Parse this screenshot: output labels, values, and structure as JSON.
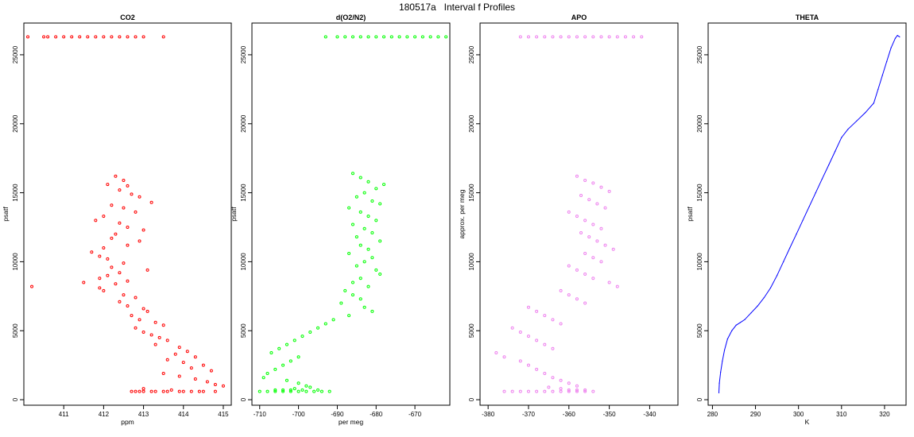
{
  "suptitle": "180517a   Interval f Profiles",
  "chart_data": [
    {
      "type": "scatter",
      "title": "CO2",
      "xlabel": "ppm",
      "ylabel": "psatf",
      "xlim": [
        410.0,
        415.2
      ],
      "ylim": [
        -400,
        27300
      ],
      "xticks": [
        411,
        412,
        413,
        414,
        415
      ],
      "yticks": [
        0,
        5000,
        10000,
        15000,
        20000,
        25000
      ],
      "color": "#ff0000",
      "grid": false,
      "x": [
        410.1,
        410.5,
        410.6,
        410.8,
        411.0,
        411.2,
        411.4,
        411.6,
        411.8,
        412.0,
        412.2,
        412.4,
        412.6,
        412.8,
        413.0,
        413.5,
        412.3,
        412.5,
        412.1,
        412.6,
        412.4,
        412.7,
        412.9,
        413.2,
        412.2,
        412.5,
        412.8,
        412.0,
        411.8,
        412.4,
        412.6,
        413.0,
        412.3,
        412.2,
        412.9,
        412.6,
        412.0,
        411.7,
        411.9,
        412.1,
        412.5,
        412.2,
        413.1,
        412.4,
        412.1,
        411.9,
        412.6,
        412.3,
        411.9,
        411.5,
        410.2,
        412.0,
        412.5,
        412.8,
        412.4,
        412.6,
        413.0,
        413.1,
        412.7,
        412.9,
        413.3,
        413.5,
        412.8,
        413.0,
        413.2,
        413.4,
        413.6,
        413.3,
        413.9,
        414.1,
        413.8,
        414.3,
        413.6,
        414.0,
        414.5,
        414.2,
        414.7,
        413.5,
        413.9,
        414.3,
        414.6,
        414.8,
        415.0,
        413.0,
        413.7,
        412.8,
        412.7,
        413.0,
        413.3,
        413.6,
        413.9,
        414.2,
        414.5,
        414.8,
        413.5,
        413.2,
        412.9,
        414.0,
        414.4
      ],
      "y": [
        26300,
        26300,
        26300,
        26300,
        26300,
        26300,
        26300,
        26300,
        26300,
        26300,
        26300,
        26300,
        26300,
        26300,
        26300,
        26300,
        16200,
        15900,
        15600,
        15500,
        15200,
        14900,
        14700,
        14300,
        14100,
        13900,
        13600,
        13300,
        13000,
        12800,
        12500,
        12300,
        12000,
        11700,
        11500,
        11200,
        11000,
        10700,
        10400,
        10200,
        9900,
        9600,
        9400,
        9200,
        9000,
        8800,
        8600,
        8400,
        8100,
        8500,
        8200,
        7900,
        7600,
        7400,
        7100,
        6800,
        6600,
        6400,
        6100,
        5800,
        5600,
        5400,
        5200,
        4900,
        4700,
        4500,
        4300,
        4000,
        3800,
        3500,
        3300,
        3100,
        2900,
        2700,
        2500,
        2300,
        2100,
        1900,
        1700,
        1500,
        1300,
        1100,
        1000,
        800,
        700,
        600,
        600,
        600,
        600,
        600,
        600,
        600,
        600,
        600,
        600,
        600,
        600,
        600,
        600
      ]
    },
    {
      "type": "scatter",
      "title": "d(O2/N2)",
      "xlabel": "per meg",
      "ylabel": "psatf",
      "xlim": [
        -712,
        -661
      ],
      "ylim": [
        -400,
        27300
      ],
      "xticks": [
        -710,
        -700,
        -690,
        -680,
        -670
      ],
      "yticks": [
        0,
        5000,
        10000,
        15000,
        20000,
        25000
      ],
      "color": "#00ff00",
      "grid": false,
      "x": [
        -693,
        -690,
        -688,
        -686,
        -684,
        -682,
        -680,
        -678,
        -676,
        -674,
        -672,
        -670,
        -668,
        -666,
        -664,
        -662,
        -686,
        -684,
        -682,
        -678,
        -680,
        -683,
        -685,
        -681,
        -679,
        -687,
        -684,
        -682,
        -680,
        -686,
        -683,
        -681,
        -685,
        -679,
        -684,
        -682,
        -687,
        -681,
        -683,
        -685,
        -680,
        -679,
        -684,
        -686,
        -682,
        -688,
        -686,
        -684,
        -689,
        -683,
        -681,
        -687,
        -691,
        -693,
        -695,
        -697,
        -699,
        -701,
        -703,
        -705,
        -707,
        -700,
        -702,
        -704,
        -706,
        -708,
        -709,
        -703,
        -700,
        -698,
        -697,
        -701,
        -704,
        -706,
        -702,
        -699,
        -695,
        -710,
        -708,
        -706,
        -704,
        -702,
        -700,
        -698,
        -696,
        -694,
        -692
      ],
      "y": [
        26300,
        26300,
        26300,
        26300,
        26300,
        26300,
        26300,
        26300,
        26300,
        26300,
        26300,
        26300,
        26300,
        26300,
        26300,
        26300,
        16400,
        16100,
        15800,
        15600,
        15300,
        15000,
        14700,
        14400,
        14200,
        13900,
        13600,
        13300,
        13000,
        12700,
        12400,
        12100,
        11800,
        11500,
        11200,
        10900,
        10600,
        10300,
        10000,
        9700,
        9400,
        9100,
        8800,
        8500,
        8200,
        7900,
        7600,
        7300,
        7000,
        6700,
        6400,
        6100,
        5800,
        5500,
        5200,
        4900,
        4600,
        4300,
        4000,
        3700,
        3400,
        3100,
        2800,
        2500,
        2200,
        1900,
        1600,
        1400,
        1200,
        1000,
        900,
        800,
        700,
        700,
        700,
        700,
        700,
        600,
        600,
        600,
        600,
        600,
        600,
        600,
        600,
        600,
        600
      ]
    },
    {
      "type": "scatter",
      "title": "APO",
      "xlabel": "",
      "ylabel": "approx. per meg",
      "xlim": [
        -382,
        -333
      ],
      "ylim": [
        -400,
        27300
      ],
      "xticks": [
        -380,
        -370,
        -360,
        -350,
        -340
      ],
      "yticks": [
        0,
        5000,
        10000,
        15000,
        20000,
        25000
      ],
      "color": "#ee82ee",
      "grid": false,
      "x": [
        -372,
        -370,
        -368,
        -366,
        -364,
        -362,
        -360,
        -358,
        -356,
        -354,
        -352,
        -350,
        -348,
        -346,
        -344,
        -342,
        -358,
        -356,
        -354,
        -352,
        -350,
        -357,
        -355,
        -353,
        -351,
        -360,
        -358,
        -356,
        -354,
        -352,
        -357,
        -355,
        -353,
        -351,
        -349,
        -356,
        -354,
        -352,
        -360,
        -358,
        -356,
        -354,
        -350,
        -348,
        -362,
        -360,
        -358,
        -356,
        -370,
        -368,
        -366,
        -364,
        -362,
        -374,
        -372,
        -370,
        -368,
        -366,
        -364,
        -378,
        -376,
        -372,
        -370,
        -368,
        -366,
        -364,
        -362,
        -360,
        -358,
        -365,
        -362,
        -360,
        -358,
        -356,
        -376,
        -374,
        -372,
        -370,
        -368,
        -366,
        -364,
        -362,
        -360,
        -358,
        -356,
        -354
      ],
      "y": [
        26300,
        26300,
        26300,
        26300,
        26300,
        26300,
        26300,
        26300,
        26300,
        26300,
        26300,
        26300,
        26300,
        26300,
        26300,
        26300,
        16200,
        15900,
        15700,
        15400,
        15100,
        14800,
        14500,
        14200,
        13900,
        13600,
        13300,
        13000,
        12700,
        12400,
        12100,
        11800,
        11500,
        11200,
        10900,
        10600,
        10300,
        10000,
        9700,
        9400,
        9100,
        8800,
        8500,
        8200,
        7900,
        7600,
        7300,
        7000,
        6700,
        6400,
        6100,
        5800,
        5500,
        5200,
        4900,
        4600,
        4300,
        4000,
        3700,
        3400,
        3100,
        2800,
        2500,
        2200,
        1900,
        1600,
        1400,
        1200,
        1000,
        900,
        800,
        700,
        700,
        700,
        600,
        600,
        600,
        600,
        600,
        600,
        600,
        600,
        600,
        600,
        600,
        600
      ]
    },
    {
      "type": "line",
      "title": "THETA",
      "xlabel": "K",
      "ylabel": "psatf",
      "xlim": [
        279,
        325
      ],
      "ylim": [
        -400,
        27300
      ],
      "xticks": [
        280,
        290,
        300,
        310,
        320
      ],
      "yticks": [
        0,
        5000,
        10000,
        15000,
        20000,
        25000
      ],
      "color": "#0000ff",
      "grid": false,
      "x": [
        281.5,
        281.6,
        281.9,
        282.3,
        282.8,
        283.5,
        284.5,
        285.5,
        286.5,
        287.5,
        289.0,
        290.5,
        292.0,
        293.5,
        295.0,
        296.5,
        298.0,
        299.5,
        301.0,
        302.5,
        304.0,
        305.5,
        307.0,
        308.5,
        310.0,
        311.5,
        313.5,
        315.5,
        317.5,
        318.5,
        319.5,
        320.5,
        321.5,
        322.5,
        323.0,
        323.5
      ],
      "y": [
        500,
        1200,
        2000,
        2800,
        3600,
        4400,
        5000,
        5400,
        5600,
        5800,
        6300,
        6800,
        7400,
        8100,
        9000,
        10000,
        11000,
        12000,
        13000,
        14000,
        15000,
        16000,
        17000,
        18000,
        19000,
        19600,
        20200,
        20800,
        21500,
        22500,
        23500,
        24500,
        25500,
        26200,
        26400,
        26300
      ]
    }
  ]
}
